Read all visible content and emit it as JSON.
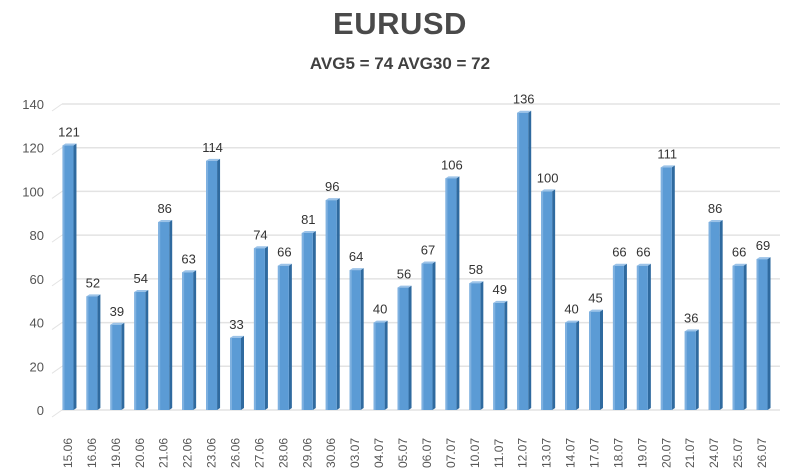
{
  "chart": {
    "title": "EURUSD",
    "subtitle": "AVG5 = 74 AVG30 = 72"
  },
  "colors": {
    "bar_front": "#5b9bd5",
    "bar_side": "#2f6a9f",
    "bar_top": "#9cc3e8",
    "grid": "#e3e3e3",
    "axis_text": "#555555",
    "title_text": "#4a4a4a"
  },
  "chart_data": {
    "type": "bar",
    "title": "EURUSD",
    "subtitle": "AVG5 = 74 AVG30 = 72",
    "xlabel": "",
    "ylabel": "",
    "ylim": [
      0,
      140
    ],
    "yticks": [
      0,
      20,
      40,
      60,
      80,
      100,
      120,
      140
    ],
    "grid": true,
    "legend": "none",
    "data_labels": true,
    "categories": [
      "15.06",
      "16.06",
      "19.06",
      "20.06",
      "21.06",
      "22.06",
      "23.06",
      "26.06",
      "27.06",
      "28.06",
      "29.06",
      "30.06",
      "03.07",
      "04.07",
      "05.07",
      "06.07",
      "07.07",
      "10.07",
      "11.07",
      "12.07",
      "13.07",
      "14.07",
      "17.07",
      "18.07",
      "19.07",
      "20.07",
      "21.07",
      "24.07",
      "25.07",
      "26.07"
    ],
    "values": [
      121,
      52,
      39,
      54,
      86,
      63,
      114,
      33,
      74,
      66,
      81,
      96,
      64,
      40,
      56,
      67,
      106,
      58,
      49,
      136,
      100,
      40,
      45,
      66,
      66,
      111,
      36,
      86,
      66,
      69
    ]
  }
}
